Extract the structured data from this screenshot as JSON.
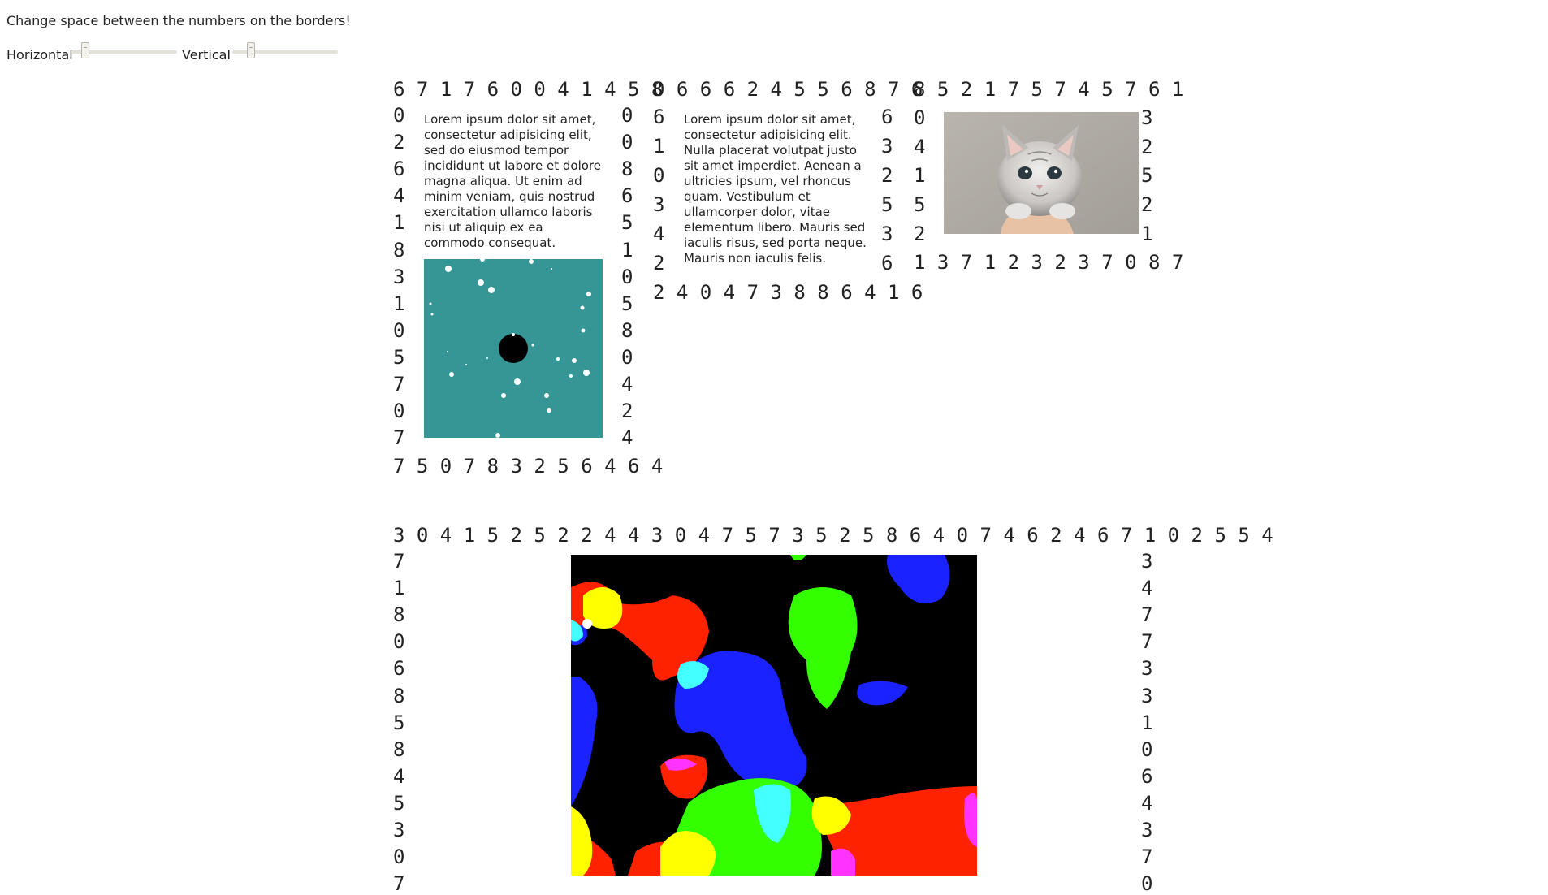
{
  "instruction": "Change space between the numbers on the borders!",
  "controls": {
    "horizontal_label": "Horizontal",
    "vertical_label": "Vertical"
  },
  "box1": {
    "top": "6 7 1 7 6 0 0 4 1 4 5 8",
    "left": [
      "0",
      "2",
      "6",
      "4",
      "1",
      "8",
      "3",
      "1",
      "0",
      "5",
      "7",
      "0",
      "7"
    ],
    "right": [
      "0",
      "0",
      "8",
      "6",
      "5",
      "1",
      "0",
      "5",
      "8",
      "0",
      "4",
      "2",
      "4"
    ],
    "bottom": "7 5 0 7 8 3 2 5 6 4 6 4",
    "text": "Lorem ipsum dolor sit amet, consectetur adipisicing elit, sed do eiusmod tempor incididunt ut labore et dolore magna aliqua. Ut enim ad minim veniam, quis nostrud exercitation ullamco laboris nisi ut aliquip ex ea commodo consequat."
  },
  "box2": {
    "top": "0 6 6 6 2 4 5 5 6 8 7 6",
    "left": [
      "6",
      "1",
      "0",
      "3",
      "4",
      "2"
    ],
    "right": [
      "6",
      "3",
      "2",
      "5",
      "3",
      "6"
    ],
    "bottom": "2 4 0 4 7 3 8 8 6 4 1 6",
    "text": "Lorem ipsum dolor sit amet, consectetur adipisicing elit. Nulla placerat volutpat justo sit amet imperdiet. Aenean a ultricies ipsum, vel rhoncus quam. Vestibulum et ullamcorper dolor, vitae elementum libero. Mauris sed iaculis risus, sed porta neque. Mauris non iaculis felis."
  },
  "box3": {
    "top": "8 5 2 1 7 5 7 4 5 7 6 1",
    "left": [
      "0",
      "4",
      "1",
      "5",
      "2"
    ],
    "right": [
      "3",
      "2",
      "5",
      "2",
      "1"
    ],
    "bottom": "1 3 7 1 2 3 2 3 7 0 8 7"
  },
  "box4": {
    "top": "3 0 4 1 5 2 5 2 2 4 4 3 0 4 7 5 7 3 5 2 5 8 6 4 0 7 4 6 2 4 6 7 1 0 2 5 5 4",
    "left": [
      "7",
      "1",
      "8",
      "0",
      "6",
      "8",
      "5",
      "8",
      "4",
      "5",
      "3",
      "0",
      "7"
    ],
    "right": [
      "3",
      "4",
      "7",
      "7",
      "3",
      "3",
      "1",
      "0",
      "6",
      "4",
      "3",
      "7",
      "0"
    ]
  },
  "colors": {
    "teal": "#369696",
    "red": "#ff2200",
    "green": "#33ff00",
    "blue": "#1a22ff",
    "yellow": "#ffff00",
    "cyan": "#44ffff",
    "magenta": "#ff33ff"
  }
}
